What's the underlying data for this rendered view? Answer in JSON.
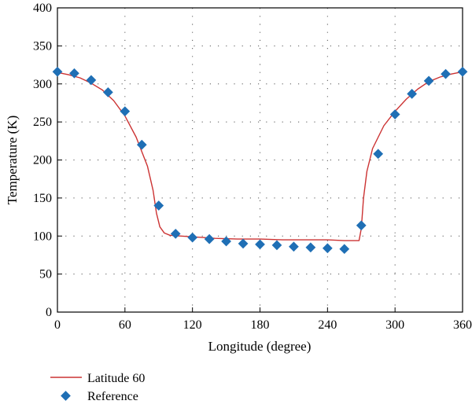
{
  "chart_data": {
    "type": "line",
    "xlabel": "Longitude (degree)",
    "ylabel": "Temperature (K)",
    "xlim": [
      0,
      360
    ],
    "ylim": [
      0,
      400
    ],
    "xticks": [
      0,
      60,
      120,
      180,
      240,
      300,
      360
    ],
    "yticks": [
      0,
      50,
      100,
      150,
      200,
      250,
      300,
      350,
      400
    ],
    "grid": true,
    "legend_position": "bottom-left",
    "series": [
      {
        "name": "Latitude 60",
        "kind": "line",
        "color": "#cc3333",
        "points": [
          [
            0,
            315
          ],
          [
            10,
            312
          ],
          [
            20,
            308
          ],
          [
            30,
            301
          ],
          [
            40,
            292
          ],
          [
            50,
            278
          ],
          [
            60,
            258
          ],
          [
            70,
            230
          ],
          [
            80,
            192
          ],
          [
            85,
            160
          ],
          [
            88,
            130
          ],
          [
            91,
            112
          ],
          [
            95,
            104
          ],
          [
            100,
            101
          ],
          [
            110,
            100
          ],
          [
            120,
            99
          ],
          [
            140,
            97
          ],
          [
            160,
            96
          ],
          [
            180,
            96
          ],
          [
            200,
            95
          ],
          [
            220,
            95
          ],
          [
            240,
            95
          ],
          [
            255,
            94
          ],
          [
            265,
            94
          ],
          [
            268,
            94
          ],
          [
            270,
            110
          ],
          [
            272,
            150
          ],
          [
            275,
            185
          ],
          [
            280,
            215
          ],
          [
            290,
            245
          ],
          [
            300,
            264
          ],
          [
            310,
            280
          ],
          [
            320,
            293
          ],
          [
            330,
            303
          ],
          [
            340,
            309
          ],
          [
            350,
            313
          ],
          [
            360,
            316
          ]
        ]
      },
      {
        "name": "Reference",
        "kind": "scatter",
        "color": "#1f6fb5",
        "points": [
          [
            0,
            316
          ],
          [
            15,
            314
          ],
          [
            30,
            305
          ],
          [
            45,
            289
          ],
          [
            60,
            264
          ],
          [
            75,
            220
          ],
          [
            90,
            140
          ],
          [
            105,
            103
          ],
          [
            120,
            98
          ],
          [
            135,
            96
          ],
          [
            150,
            93
          ],
          [
            165,
            90
          ],
          [
            180,
            89
          ],
          [
            195,
            88
          ],
          [
            210,
            86
          ],
          [
            225,
            85
          ],
          [
            240,
            84
          ],
          [
            255,
            83
          ],
          [
            270,
            114
          ],
          [
            285,
            208
          ],
          [
            300,
            260
          ],
          [
            315,
            287
          ],
          [
            330,
            304
          ],
          [
            345,
            313
          ],
          [
            360,
            316
          ]
        ]
      }
    ]
  }
}
